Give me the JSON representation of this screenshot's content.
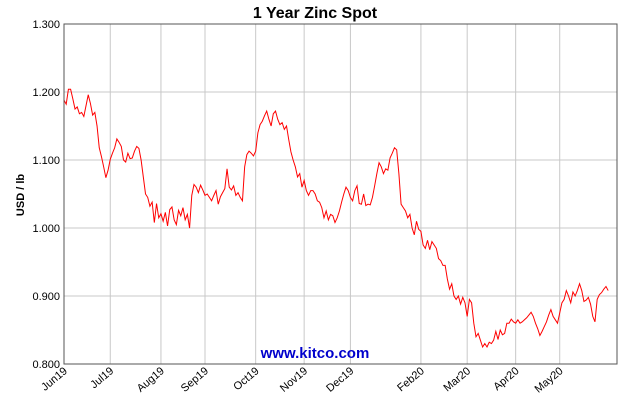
{
  "chart_data": {
    "type": "line",
    "title": "1 Year Zinc Spot",
    "ylabel": "USD / lb",
    "xlabel": "",
    "ylim": [
      0.8,
      1.3
    ],
    "yticks": [
      "1.300",
      "1.200",
      "1.100",
      "1.000",
      "0.900",
      "0.800"
    ],
    "ytick_values": [
      1.3,
      1.2,
      1.1,
      1.0,
      0.9,
      0.8
    ],
    "xticks": [
      "Jun19",
      "Jul19",
      "Aug19",
      "Sep19",
      "Oct19",
      "Nov19",
      "Dec19",
      "Feb20",
      "Mar20",
      "Apr20",
      "May20"
    ],
    "xtick_positions": [
      0,
      21,
      44,
      64,
      87,
      109,
      130,
      162,
      183,
      205,
      225
    ],
    "x_count": 252,
    "grid": true,
    "line_color": "#ff0000",
    "watermark": "www.kitco.com",
    "watermark_color": "#0000cc",
    "series": [
      {
        "values": [
          1.188,
          1.182,
          1.204,
          1.204,
          1.19,
          1.175,
          1.178,
          1.168,
          1.17,
          1.164,
          1.18,
          1.196,
          1.183,
          1.166,
          1.17,
          1.15,
          1.118,
          1.105,
          1.09,
          1.074,
          1.085,
          1.101,
          1.11,
          1.118,
          1.131,
          1.126,
          1.12,
          1.1,
          1.097,
          1.11,
          1.102,
          1.103,
          1.113,
          1.12,
          1.117,
          1.1,
          1.075,
          1.05,
          1.045,
          1.032,
          1.038,
          1.008,
          1.036,
          1.015,
          1.021,
          1.01,
          1.023,
          1.003,
          1.027,
          1.031,
          1.012,
          1.005,
          1.026,
          1.018,
          1.03,
          1.012,
          1.02,
          1.0,
          1.048,
          1.064,
          1.06,
          1.052,
          1.063,
          1.056,
          1.048,
          1.05,
          1.045,
          1.04,
          1.048,
          1.055,
          1.035,
          1.046,
          1.052,
          1.058,
          1.087,
          1.06,
          1.056,
          1.062,
          1.048,
          1.052,
          1.045,
          1.04,
          1.09,
          1.108,
          1.113,
          1.11,
          1.106,
          1.113,
          1.14,
          1.152,
          1.157,
          1.165,
          1.172,
          1.16,
          1.15,
          1.168,
          1.172,
          1.16,
          1.152,
          1.155,
          1.145,
          1.15,
          1.13,
          1.112,
          1.1,
          1.09,
          1.075,
          1.08,
          1.06,
          1.07,
          1.055,
          1.048,
          1.055,
          1.055,
          1.05,
          1.04,
          1.038,
          1.03,
          1.015,
          1.025,
          1.012,
          1.02,
          1.018,
          1.008,
          1.015,
          1.025,
          1.038,
          1.05,
          1.06,
          1.055,
          1.045,
          1.04,
          1.055,
          1.062,
          1.036,
          1.035,
          1.05,
          1.033,
          1.035,
          1.034,
          1.045,
          1.062,
          1.08,
          1.096,
          1.09,
          1.08,
          1.087,
          1.085,
          1.103,
          1.11,
          1.118,
          1.115,
          1.08,
          1.035,
          1.03,
          1.025,
          1.015,
          1.02,
          1.0,
          0.99,
          1.01,
          0.998,
          0.995,
          0.975,
          0.97,
          0.982,
          0.968,
          0.98,
          0.975,
          0.97,
          0.955,
          0.952,
          0.945,
          0.945,
          0.925,
          0.91,
          0.918,
          0.9,
          0.895,
          0.9,
          0.888,
          0.898,
          0.89,
          0.87,
          0.895,
          0.89,
          0.86,
          0.84,
          0.845,
          0.835,
          0.825,
          0.83,
          0.825,
          0.832,
          0.83,
          0.835,
          0.848,
          0.836,
          0.85,
          0.843,
          0.845,
          0.86,
          0.86,
          0.866,
          0.862,
          0.86,
          0.865,
          0.86,
          0.862,
          0.865,
          0.868,
          0.872,
          0.876,
          0.87,
          0.86,
          0.852,
          0.842,
          0.848,
          0.855,
          0.862,
          0.872,
          0.88,
          0.87,
          0.865,
          0.86,
          0.875,
          0.89,
          0.895,
          0.908,
          0.9,
          0.89,
          0.906,
          0.9,
          0.908,
          0.918,
          0.908,
          0.892,
          0.894,
          0.898,
          0.888,
          0.87,
          0.862,
          0.895,
          0.902,
          0.905,
          0.91,
          0.914,
          0.908
        ]
      }
    ]
  }
}
